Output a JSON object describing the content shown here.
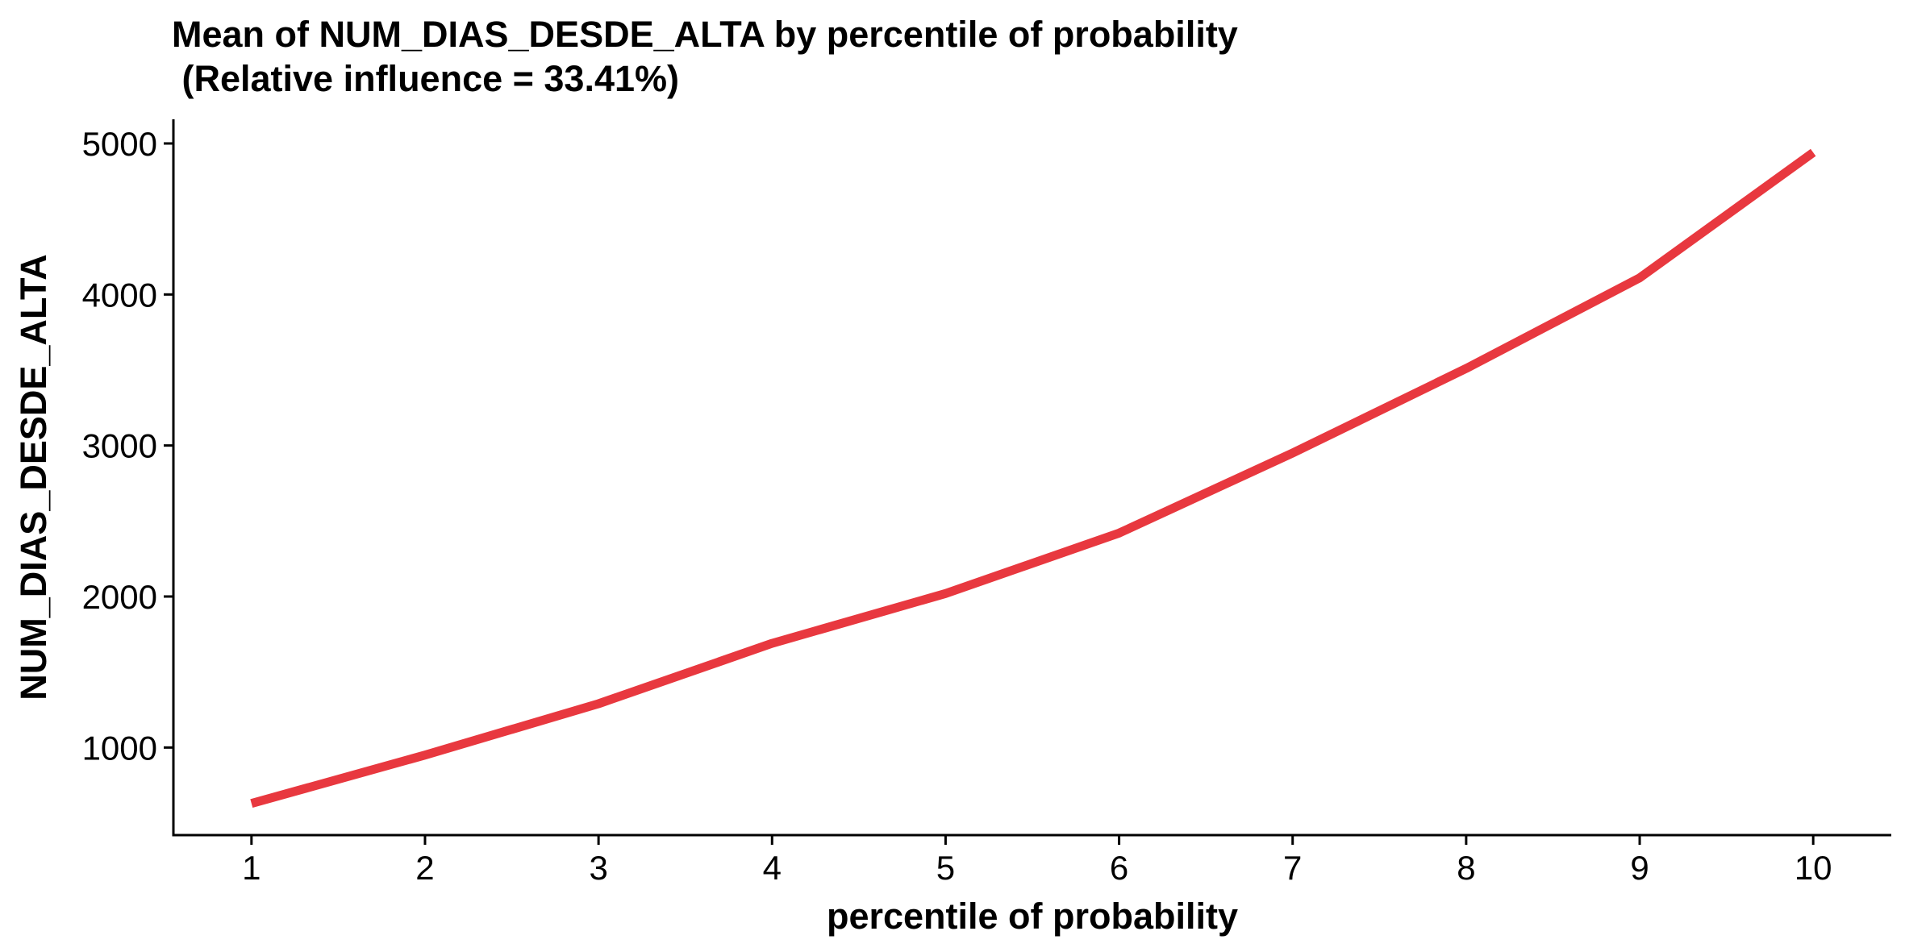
{
  "chart_data": {
    "type": "line",
    "title": "Mean of NUM_DIAS_DESDE_ALTA by percentile of probability",
    "subtitle": " (Relative influence = 33.41%)",
    "xlabel": "percentile of probability",
    "ylabel": "NUM_DIAS_DESDE_ALTA",
    "x": [
      1,
      2,
      3,
      4,
      5,
      6,
      7,
      8,
      9,
      10
    ],
    "x_tick_labels": [
      "1",
      "2",
      "3",
      "4",
      "5",
      "6",
      "7",
      "8",
      "9",
      "10"
    ],
    "y_ticks": [
      1000,
      2000,
      3000,
      4000,
      5000
    ],
    "y_tick_labels": [
      "1000",
      "2000",
      "3000",
      "4000",
      "5000"
    ],
    "xlim": [
      0.55,
      10.45
    ],
    "ylim": [
      420,
      5160
    ],
    "series": [
      {
        "values": [
          630,
          950,
          1290,
          1690,
          2020,
          2420,
          2950,
          3510,
          4110,
          4940
        ],
        "color": "#E8383F"
      }
    ],
    "grid": false,
    "legend": "none"
  }
}
